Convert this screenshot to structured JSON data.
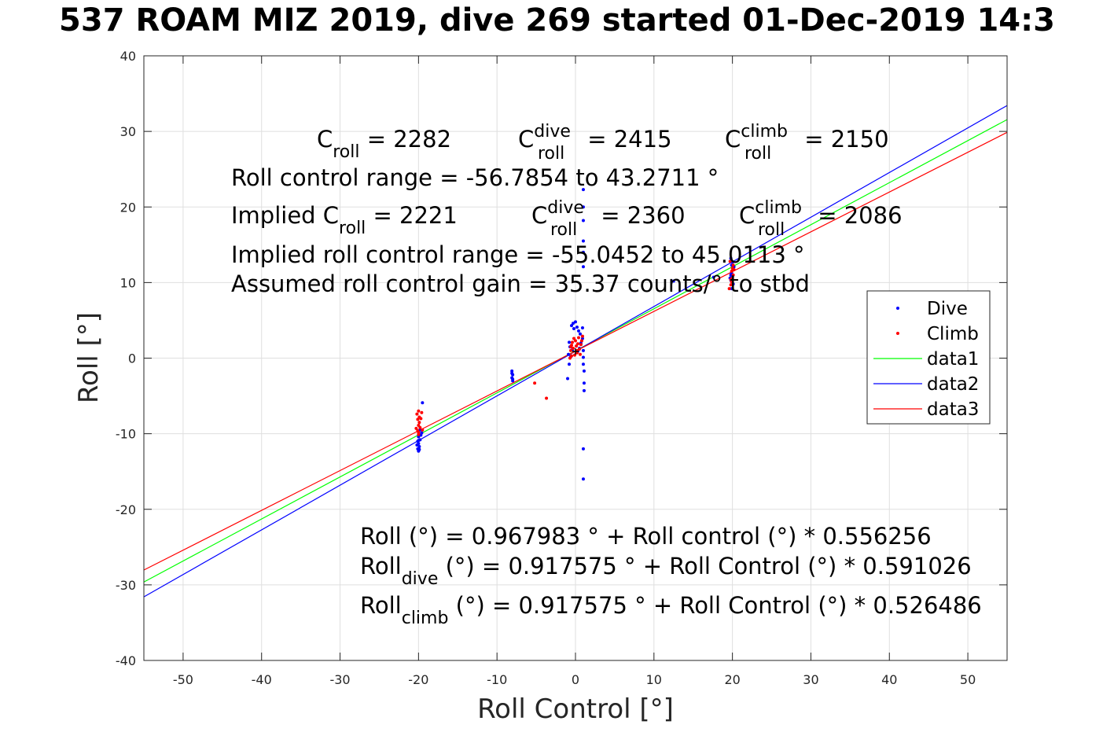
{
  "title": "537 ROAM MIZ 2019, dive 269 started 01-Dec-2019 14:3",
  "chart_data": {
    "type": "scatter",
    "xlabel": "Roll Control [°]",
    "ylabel": "Roll [°]",
    "xlim": [
      -55,
      55
    ],
    "ylim": [
      -40,
      40
    ],
    "xticks": [
      -50,
      -40,
      -30,
      -20,
      -10,
      0,
      10,
      20,
      30,
      40,
      50
    ],
    "yticks": [
      -40,
      -30,
      -20,
      -10,
      0,
      10,
      20,
      30,
      40
    ],
    "grid": true,
    "legend_position": "right",
    "legend": [
      {
        "label": "Dive",
        "kind": "marker",
        "color": "#0000ff"
      },
      {
        "label": "Climb",
        "kind": "marker",
        "color": "#ff0000"
      },
      {
        "label": "data1",
        "kind": "line",
        "color": "#00ff00"
      },
      {
        "label": "data2",
        "kind": "line",
        "color": "#0000ff"
      },
      {
        "label": "data3",
        "kind": "line",
        "color": "#ff0000"
      }
    ],
    "series": [
      {
        "name": "Dive",
        "color": "#0000ff",
        "points": [
          [
            -20,
            -12.3
          ],
          [
            -20.1,
            -12.0
          ],
          [
            -19.9,
            -11.7
          ],
          [
            -20,
            -11.3
          ],
          [
            -20.1,
            -11.0
          ],
          [
            -19.8,
            -10.8
          ],
          [
            -20,
            -10.4
          ],
          [
            -19.9,
            -12.1
          ],
          [
            -20.2,
            -11.5
          ],
          [
            -19.7,
            -10.2
          ],
          [
            -19.6,
            -9.9
          ],
          [
            -19.5,
            -5.9
          ],
          [
            -19.8,
            -9.5
          ],
          [
            -20,
            -10.9
          ],
          [
            -8.1,
            -1.7
          ],
          [
            -8.0,
            -2.2
          ],
          [
            -8.1,
            -2.6
          ],
          [
            -8.0,
            -3.0
          ],
          [
            -8.1,
            -2.0
          ],
          [
            -8.0,
            -2.8
          ],
          [
            -1,
            -2.7
          ],
          [
            -0.8,
            -0.8
          ],
          [
            -0.9,
            0.5
          ],
          [
            -0.7,
            1.5
          ],
          [
            -0.8,
            2.1
          ],
          [
            -0.5,
            4.3
          ],
          [
            -0.3,
            4.6
          ],
          [
            0,
            4.8
          ],
          [
            0.2,
            4.1
          ],
          [
            0.6,
            3.2
          ],
          [
            0.9,
            2.6
          ],
          [
            1,
            1.0
          ],
          [
            1,
            0.1
          ],
          [
            1,
            -0.8
          ],
          [
            1.1,
            -1.7
          ],
          [
            1.1,
            -3.3
          ],
          [
            1.1,
            -4.3
          ],
          [
            1,
            -12.0
          ],
          [
            1,
            -16.0
          ],
          [
            1,
            12.1
          ],
          [
            1,
            14.0
          ],
          [
            1,
            15.5
          ],
          [
            1,
            18.2
          ],
          [
            1,
            20.0
          ],
          [
            1,
            22.3
          ],
          [
            0.9,
            4.0
          ],
          [
            0.4,
            3.6
          ],
          [
            -0.2,
            3.9
          ],
          [
            -0.6,
            0.2
          ],
          [
            0.5,
            1.3
          ],
          [
            0.7,
            2.0
          ],
          [
            0.3,
            0.9
          ],
          [
            -0.4,
            1.1
          ],
          [
            12.5,
            10.2
          ],
          [
            17.6,
            10.7
          ],
          [
            19.8,
            13.2
          ],
          [
            20,
            12.7
          ],
          [
            19.9,
            12.3
          ],
          [
            20.1,
            11.8
          ],
          [
            19.9,
            11.3
          ],
          [
            20,
            10.8
          ],
          [
            19.8,
            10.3
          ],
          [
            20.1,
            9.8
          ],
          [
            19.9,
            9.2
          ],
          [
            19.8,
            11.0
          ],
          [
            20.2,
            12.1
          ],
          [
            19.7,
            10.6
          ]
        ]
      },
      {
        "name": "Climb",
        "color": "#ff0000",
        "points": [
          [
            -20,
            -7.0
          ],
          [
            -20.2,
            -7.4
          ],
          [
            -19.9,
            -7.8
          ],
          [
            -20.1,
            -8.1
          ],
          [
            -19.9,
            -8.5
          ],
          [
            -20,
            -8.9
          ],
          [
            -19.8,
            -9.2
          ],
          [
            -20.1,
            -9.6
          ],
          [
            -20,
            -10.1
          ],
          [
            -19.6,
            -7.2
          ],
          [
            -19.5,
            -9.5
          ],
          [
            -20.3,
            -9.3
          ],
          [
            -19.7,
            -8.0
          ],
          [
            -20,
            -9.8
          ],
          [
            -5.2,
            -3.3
          ],
          [
            -3.7,
            -5.3
          ],
          [
            -0.7,
            0.0
          ],
          [
            -0.6,
            1.0
          ],
          [
            -0.5,
            0.3
          ],
          [
            -0.4,
            2.1
          ],
          [
            -0.3,
            1.3
          ],
          [
            -0.2,
            2.6
          ],
          [
            0,
            2.3
          ],
          [
            0.1,
            1.6
          ],
          [
            0.2,
            0.7
          ],
          [
            0.3,
            1.9
          ],
          [
            0.4,
            2.7
          ],
          [
            0.5,
            1.2
          ],
          [
            0.6,
            0.5
          ],
          [
            0.7,
            1.8
          ],
          [
            0.8,
            2.3
          ],
          [
            -0.1,
            0.4
          ],
          [
            0.2,
            1.0
          ],
          [
            -0.5,
            1.7
          ],
          [
            0.9,
            2.9
          ],
          [
            -0.6,
            1.5
          ],
          [
            19.6,
            9.2
          ],
          [
            19.8,
            9.7
          ],
          [
            19.9,
            10.1
          ],
          [
            20,
            10.6
          ],
          [
            20.1,
            11.0
          ],
          [
            19.9,
            11.5
          ],
          [
            20,
            11.9
          ],
          [
            20.1,
            12.3
          ],
          [
            19.8,
            10.4
          ],
          [
            20.2,
            11.7
          ],
          [
            19.7,
            12.8
          ]
        ]
      }
    ],
    "fit_lines": [
      {
        "name": "data1",
        "color": "#00ff00",
        "intercept": 0.967983,
        "slope": 0.556256
      },
      {
        "name": "data2",
        "color": "#0000ff",
        "intercept": 0.917575,
        "slope": 0.591026
      },
      {
        "name": "data3",
        "color": "#ff0000",
        "intercept": 0.917575,
        "slope": 0.526486
      }
    ],
    "annotations": {
      "upper": {
        "c_roll_base": "C",
        "c_roll_sub": "roll",
        "c_roll_val": " = 2282",
        "c_dive_sup": "dive",
        "c_dive_sub": "roll",
        "c_dive_val": " = 2415",
        "c_climb_sup": "climb",
        "c_climb_sub": "roll",
        "c_climb_val": " = 2150",
        "range": "Roll control range = -56.7854 to 43.2711 °",
        "implied_pre": "Implied C",
        "implied_sub": "roll",
        "implied_val": " = 2221",
        "implied_dive_sup": "dive",
        "implied_dive_sub": "roll",
        "implied_dive_val": " = 2360",
        "implied_climb_sup": "climb",
        "implied_climb_sub": "roll",
        "implied_climb_val": " = 2086",
        "implied_range": "Implied roll control range = -55.0452 to 45.0113 °",
        "gain": "Assumed roll control gain = 35.37 counts/° to stbd"
      },
      "lower": {
        "eq1": "Roll (°) = 0.967983 ° + Roll control (°) * 0.556256",
        "eq2_pre": "Roll",
        "eq2_sub": "dive",
        "eq2_post": " (°) = 0.917575 ° + Roll Control (°) * 0.591026",
        "eq3_pre": "Roll",
        "eq3_sub": "climb",
        "eq3_post": " (°) = 0.917575 ° + Roll Control (°) * 0.526486"
      }
    }
  }
}
